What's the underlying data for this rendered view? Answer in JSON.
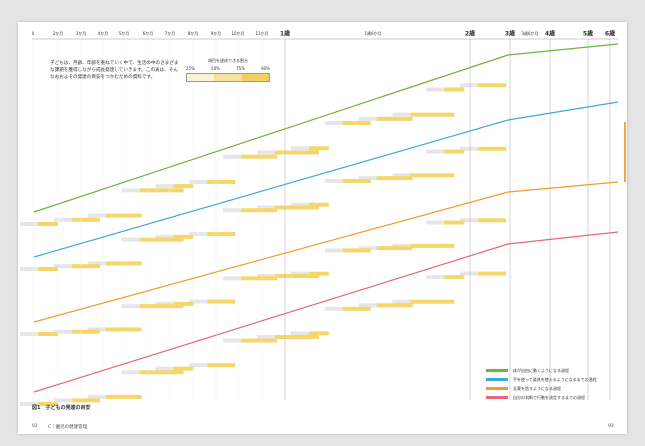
{
  "axis": {
    "months": [
      "0",
      "2か月",
      "3か月",
      "4か月",
      "5か月",
      "6か月",
      "7か月",
      "8か月",
      "9か月",
      "10か月",
      "11か月"
    ],
    "years": [
      "1歳",
      "2歳",
      "3歳",
      "4歳",
      "5歳",
      "6歳"
    ],
    "half_years": [
      "1歳6か月",
      "3歳6か月"
    ]
  },
  "intro": "子どもは、月齢、年齢を重ねていく中で、生活の中のさまざまな課題を獲得しながら成長発達していきます。この表は、そんなおおよその発達の目安をつかむための資料です。",
  "rate_box": {
    "title": "項目を達成できる割合",
    "labels": [
      "25%",
      "50%",
      "75%",
      "90%"
    ]
  },
  "legend": [
    "体が自由に動くようになる過程",
    "手を使って道具を使えるようになるまでの過程",
    "言葉を話すようになる過程",
    "自分の判断で行動を決定するまでの過程"
  ],
  "caption": "図1　子どもの発達の目安",
  "footer": {
    "left_page": "92",
    "section": "C｜園児の健康管理",
    "right_page": "93"
  }
}
